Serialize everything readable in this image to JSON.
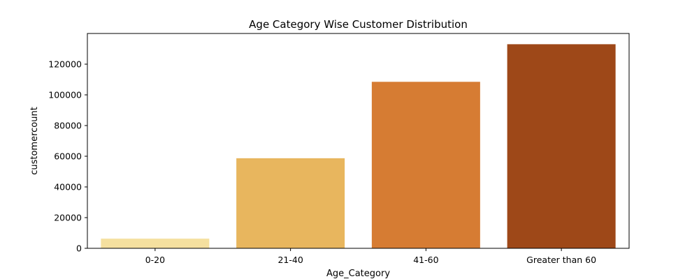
{
  "chart_data": {
    "type": "bar",
    "title": "Age Category Wise Customer Distribution",
    "xlabel": "Age_Category",
    "ylabel": "customercount",
    "categories": [
      "0-20",
      "21-40",
      "41-60",
      "Greater than 60"
    ],
    "values": [
      6300,
      58700,
      108500,
      133000
    ],
    "colors": [
      "#f5e09f",
      "#e8b65e",
      "#d67c33",
      "#9e4818"
    ],
    "ylim": [
      0,
      140000
    ],
    "yticks": [
      0,
      20000,
      40000,
      60000,
      80000,
      100000,
      120000
    ],
    "grid": false,
    "legend": "none"
  }
}
